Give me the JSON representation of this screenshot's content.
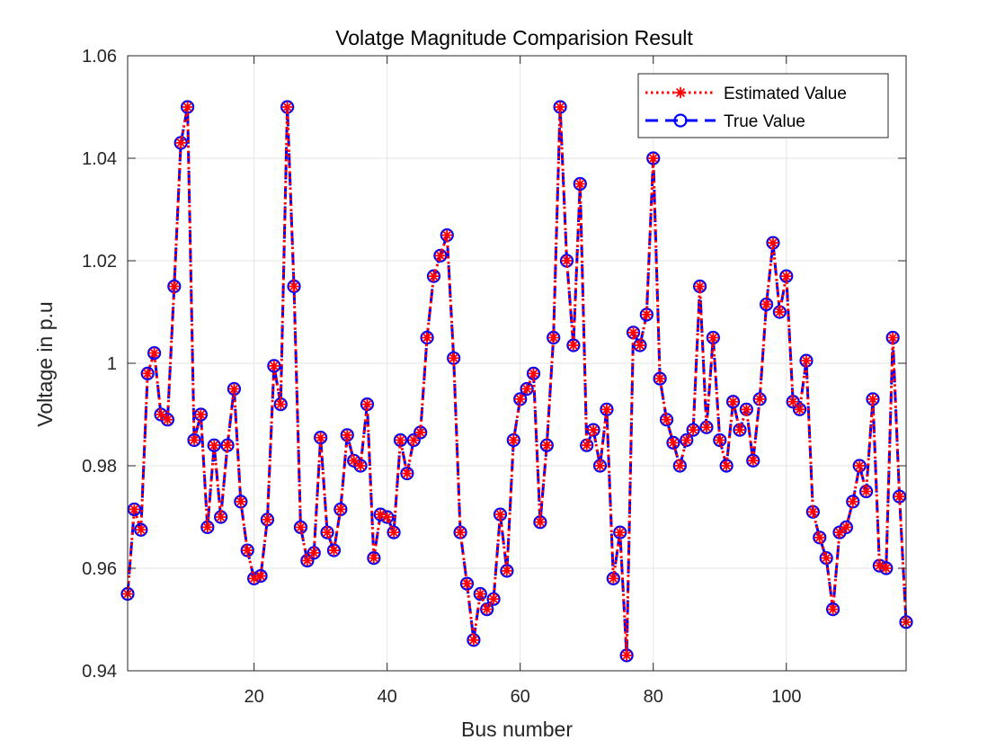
{
  "chart_data": {
    "type": "line",
    "title": "Volatge Magnitude Comparision Result",
    "xlabel": "Bus number",
    "ylabel": "Voltage in p.u",
    "xlim": [
      1,
      118
    ],
    "ylim": [
      0.94,
      1.06
    ],
    "xticks": [
      20,
      40,
      60,
      80,
      100
    ],
    "yticks": [
      0.94,
      0.96,
      0.98,
      1,
      1.02,
      1.04,
      1.06
    ],
    "ytick_labels": [
      "0.94",
      "0.96",
      "0.98",
      "1",
      "1.02",
      "1.04",
      "1.06"
    ],
    "grid": true,
    "legend_position": "top-right",
    "x": [
      1,
      2,
      3,
      4,
      5,
      6,
      7,
      8,
      9,
      10,
      11,
      12,
      13,
      14,
      15,
      16,
      17,
      18,
      19,
      20,
      21,
      22,
      23,
      24,
      25,
      26,
      27,
      28,
      29,
      30,
      31,
      32,
      33,
      34,
      35,
      36,
      37,
      38,
      39,
      40,
      41,
      42,
      43,
      44,
      45,
      46,
      47,
      48,
      49,
      50,
      51,
      52,
      53,
      54,
      55,
      56,
      57,
      58,
      59,
      60,
      61,
      62,
      63,
      64,
      65,
      66,
      67,
      68,
      69,
      70,
      71,
      72,
      73,
      74,
      75,
      76,
      77,
      78,
      79,
      80,
      81,
      82,
      83,
      84,
      85,
      86,
      87,
      88,
      89,
      90,
      91,
      92,
      93,
      94,
      95,
      96,
      97,
      98,
      99,
      100,
      101,
      102,
      103,
      104,
      105,
      106,
      107,
      108,
      109,
      110,
      111,
      112,
      113,
      114,
      115,
      116,
      117,
      118
    ],
    "series": [
      {
        "name": "Estimated Value",
        "color": "#ff0000",
        "line_style": "dotted",
        "marker": "asterisk",
        "values": [
          0.955,
          0.9715,
          0.9675,
          0.998,
          1.002,
          0.99,
          0.989,
          1.015,
          1.043,
          1.05,
          0.985,
          0.99,
          0.968,
          0.984,
          0.97,
          0.984,
          0.995,
          0.973,
          0.9635,
          0.958,
          0.9585,
          0.9695,
          0.9995,
          0.992,
          1.05,
          1.015,
          0.968,
          0.9615,
          0.963,
          0.9855,
          0.967,
          0.9635,
          0.9715,
          0.986,
          0.981,
          0.98,
          0.992,
          0.962,
          0.9705,
          0.97,
          0.967,
          0.985,
          0.9785,
          0.985,
          0.9865,
          1.005,
          1.017,
          1.021,
          1.025,
          1.001,
          0.967,
          0.957,
          0.946,
          0.955,
          0.952,
          0.954,
          0.9705,
          0.9595,
          0.985,
          0.993,
          0.995,
          0.998,
          0.969,
          0.984,
          1.005,
          1.05,
          1.02,
          1.0035,
          1.035,
          0.984,
          0.987,
          0.98,
          0.991,
          0.958,
          0.967,
          0.943,
          1.006,
          1.0035,
          1.0095,
          1.04,
          0.997,
          0.989,
          0.9845,
          0.98,
          0.985,
          0.987,
          1.015,
          0.9875,
          1.005,
          0.985,
          0.98,
          0.9925,
          0.987,
          0.991,
          0.981,
          0.993,
          1.0115,
          1.0235,
          1.01,
          1.017,
          0.9925,
          0.991,
          1.0005,
          0.971,
          0.966,
          0.962,
          0.952,
          0.967,
          0.968,
          0.973,
          0.98,
          0.975,
          0.993,
          0.9605,
          0.96,
          1.005,
          0.974,
          0.9495
        ]
      },
      {
        "name": "True Value",
        "color": "#0000ff",
        "line_style": "dashed",
        "marker": "circle",
        "values": [
          0.955,
          0.9715,
          0.9675,
          0.998,
          1.002,
          0.99,
          0.989,
          1.015,
          1.043,
          1.05,
          0.985,
          0.99,
          0.968,
          0.984,
          0.97,
          0.984,
          0.995,
          0.973,
          0.9635,
          0.958,
          0.9585,
          0.9695,
          0.9995,
          0.992,
          1.05,
          1.015,
          0.968,
          0.9615,
          0.963,
          0.9855,
          0.967,
          0.9635,
          0.9715,
          0.986,
          0.981,
          0.98,
          0.992,
          0.962,
          0.9705,
          0.97,
          0.967,
          0.985,
          0.9785,
          0.985,
          0.9865,
          1.005,
          1.017,
          1.021,
          1.025,
          1.001,
          0.967,
          0.957,
          0.946,
          0.955,
          0.952,
          0.954,
          0.9705,
          0.9595,
          0.985,
          0.993,
          0.995,
          0.998,
          0.969,
          0.984,
          1.005,
          1.05,
          1.02,
          1.0035,
          1.035,
          0.984,
          0.987,
          0.98,
          0.991,
          0.958,
          0.967,
          0.943,
          1.006,
          1.0035,
          1.0095,
          1.04,
          0.997,
          0.989,
          0.9845,
          0.98,
          0.985,
          0.987,
          1.015,
          0.9875,
          1.005,
          0.985,
          0.98,
          0.9925,
          0.987,
          0.991,
          0.981,
          0.993,
          1.0115,
          1.0235,
          1.01,
          1.017,
          0.9925,
          0.991,
          1.0005,
          0.971,
          0.966,
          0.962,
          0.952,
          0.967,
          0.968,
          0.973,
          0.98,
          0.975,
          0.993,
          0.9605,
          0.96,
          1.005,
          0.974,
          0.9495
        ]
      }
    ]
  }
}
